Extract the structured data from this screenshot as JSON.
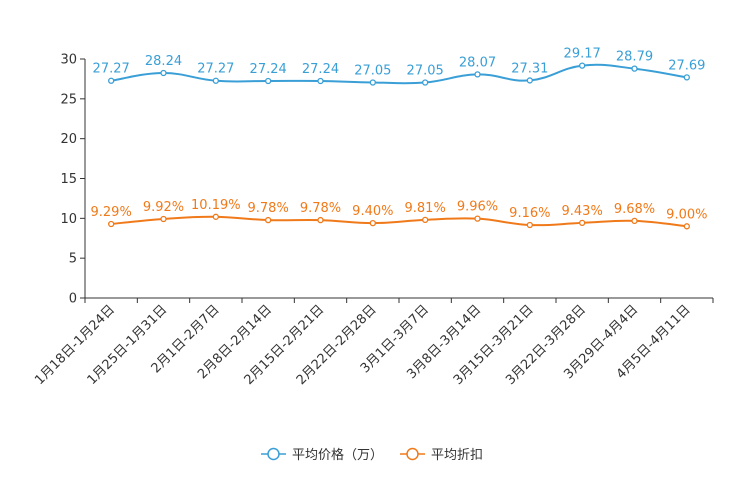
{
  "chart_data": {
    "type": "line",
    "categories": [
      "1月18日-1月24日",
      "1月25日-1月31日",
      "2月1日-2月7日",
      "2月8日-2月14日",
      "2月15日-2月21日",
      "2月22日-2月28日",
      "3月1日-3月7日",
      "3月8日-3月14日",
      "3月15日-3月21日",
      "3月22日-3月28日",
      "3月29日-4月4日",
      "4月5日-4月11日"
    ],
    "ylim": [
      0,
      30
    ],
    "yticks": [
      0,
      5,
      10,
      15,
      20,
      25,
      30
    ],
    "series": [
      {
        "name": "平均价格（万）",
        "color": "#3a9fd6",
        "values": [
          27.27,
          28.24,
          27.27,
          27.24,
          27.24,
          27.05,
          27.05,
          28.07,
          27.31,
          29.17,
          28.79,
          27.69
        ],
        "labels": [
          "27.27",
          "28.24",
          "27.27",
          "27.24",
          "27.24",
          "27.05",
          "27.05",
          "28.07",
          "27.31",
          "29.17",
          "28.79",
          "27.69"
        ]
      },
      {
        "name": "平均折扣",
        "color": "#f07a1a",
        "values": [
          9.29,
          9.92,
          10.19,
          9.78,
          9.78,
          9.4,
          9.81,
          9.96,
          9.16,
          9.43,
          9.68,
          9.0
        ],
        "labels": [
          "9.29%",
          "9.92%",
          "10.19%",
          "9.78%",
          "9.78%",
          "9.40%",
          "9.81%",
          "9.96%",
          "9.16%",
          "9.43%",
          "9.68%",
          "9.00%"
        ]
      }
    ]
  }
}
